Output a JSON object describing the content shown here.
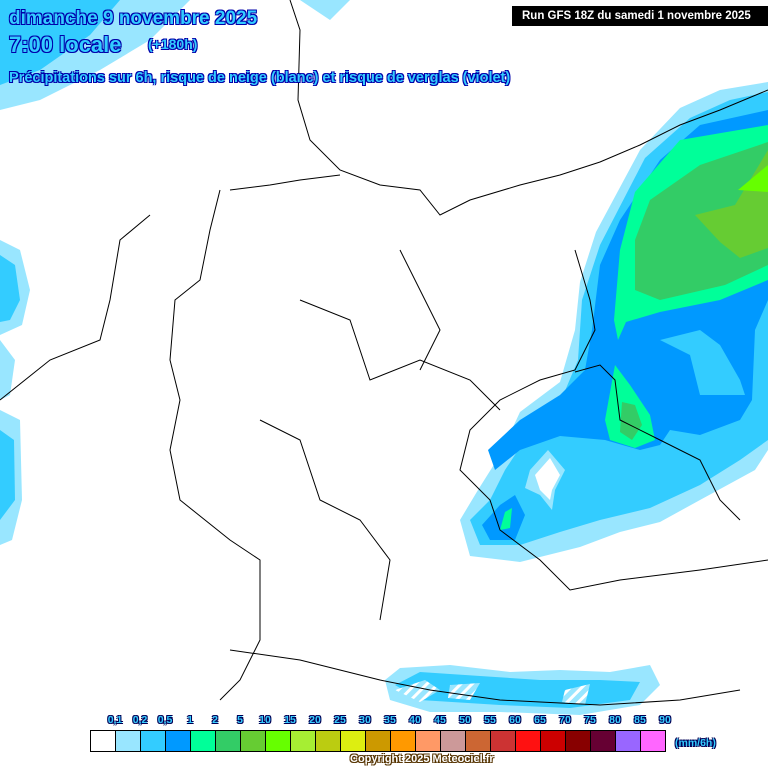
{
  "header": {
    "date": "dimanche 9 novembre 2025",
    "time": "7:00 locale",
    "lead": "(+180h)",
    "subtitle": "Précipitations sur 6h, risque de neige (blanc) et risque de verglas (violet)",
    "run": "Run GFS 18Z du samedi 1 novembre 2025"
  },
  "legend": {
    "unit": "(mm/6h)",
    "labels": [
      "0,1",
      "0,2",
      "0,5",
      "1",
      "2",
      "5",
      "10",
      "15",
      "20",
      "25",
      "30",
      "35",
      "40",
      "45",
      "50",
      "55",
      "60",
      "65",
      "70",
      "75",
      "80",
      "85",
      "90"
    ],
    "colors": [
      "#ffffff",
      "#99e6ff",
      "#33ccff",
      "#0099ff",
      "#00ff99",
      "#33cc66",
      "#66cc33",
      "#66ff00",
      "#a6ee33",
      "#bbcc11",
      "#ddee11",
      "#cc9900",
      "#ff9900",
      "#ff9966",
      "#cc9999",
      "#cc6633",
      "#cc3333",
      "#ff1111",
      "#cc0000",
      "#880000",
      "#660033",
      "#9966ff",
      "#ff66ff"
    ]
  },
  "copyright": "Copyright 2025 Meteociel.fr"
}
